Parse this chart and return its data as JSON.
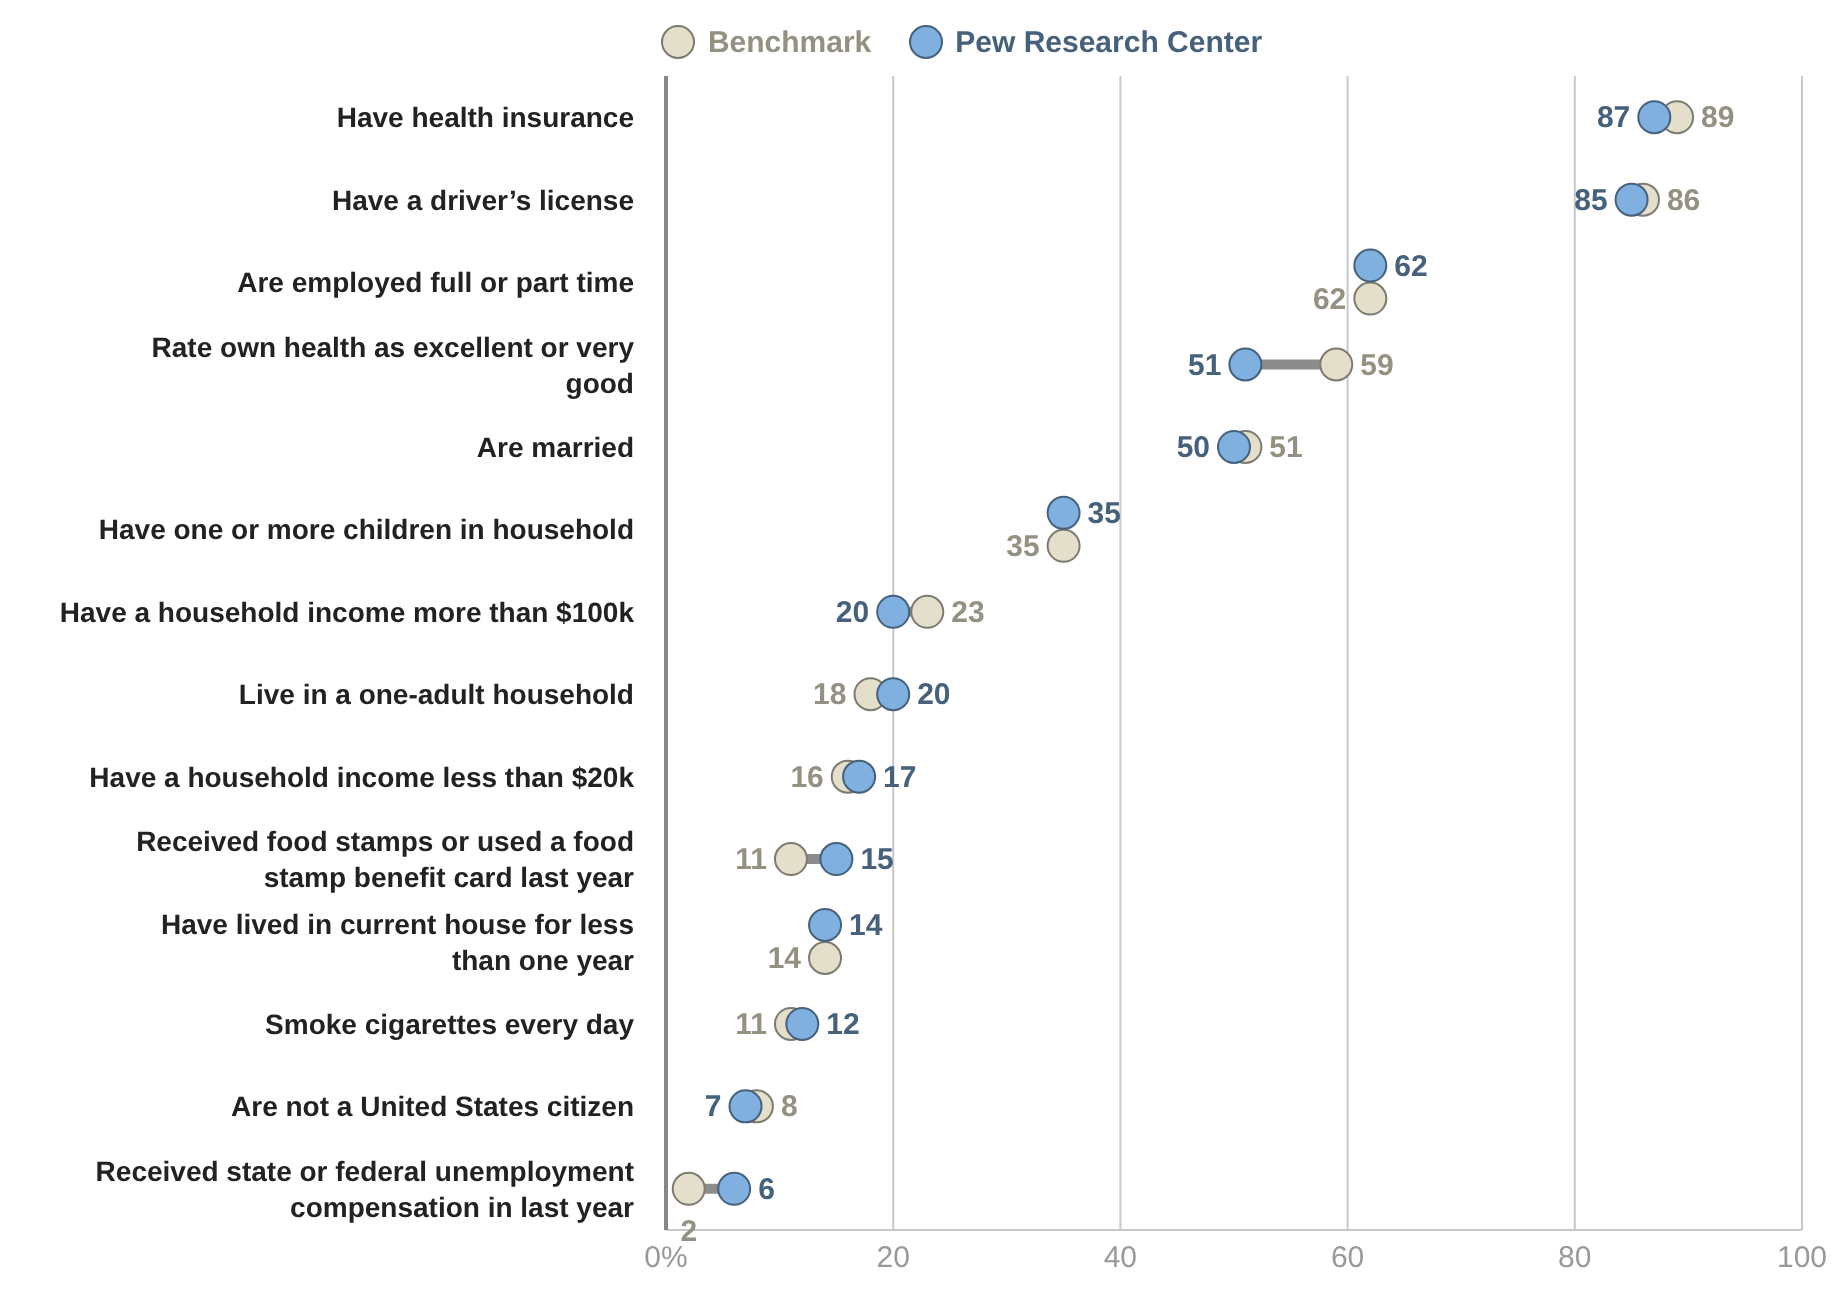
{
  "chart_data": {
    "type": "lollipop",
    "orientation": "horizontal",
    "categories": [
      "Have health insurance",
      "Have a driver’s license",
      "Are employed full or part time",
      "Rate own health as excellent or very good",
      "Are married",
      "Have one or more children in household",
      "Have a household income more than $100k",
      "Live in a one-adult household",
      "Have a household income less than $20k",
      "Received food stamps or used a food stamp benefit card last year",
      "Have lived in current house for less than one year",
      "Smoke cigarettes every day",
      "Are not a United States citizen",
      "Received state or federal unemployment compensation in last year"
    ],
    "series": [
      {
        "type": "scatter",
        "name": "Benchmark",
        "color": "#e3dfca",
        "values": [
          89,
          86,
          62,
          59,
          51,
          35,
          23,
          18,
          16,
          11,
          14,
          11,
          8,
          2
        ],
        "value_labels": [
          "89",
          "86",
          "62",
          "59",
          "51",
          "35",
          "23",
          "18",
          "16",
          "11",
          "14",
          "11",
          "8",
          "2"
        ]
      },
      {
        "type": "scatter",
        "name": "Pew Research Center",
        "color": "#7fb0e0",
        "values": [
          87,
          85,
          62,
          51,
          50,
          35,
          20,
          20,
          17,
          15,
          14,
          12,
          7,
          6
        ],
        "value_labels": [
          "87",
          "85",
          "62",
          "51",
          "50",
          "35",
          "20",
          "20",
          "17",
          "15",
          "14",
          "12",
          "7",
          "6"
        ]
      }
    ],
    "xlim": [
      0,
      100
    ],
    "xticks": [
      {
        "value": 0,
        "label": "0%"
      },
      20,
      40,
      60,
      80,
      100
    ],
    "grid": "x",
    "legend": "top",
    "marker": "circle"
  }
}
